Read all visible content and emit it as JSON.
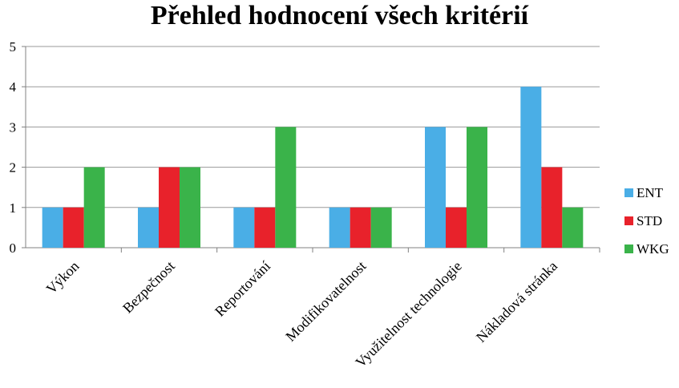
{
  "chart_data": {
    "type": "bar",
    "title": "Přehled hodnocení všech kritérií",
    "xlabel": "",
    "ylabel": "",
    "ylim": [
      0,
      5
    ],
    "yticks": [
      0,
      1,
      2,
      3,
      4,
      5
    ],
    "grid": true,
    "legend_position": "right",
    "categories": [
      "Výkon",
      "Bezpečnost",
      "Reportování",
      "Modifikovatelnost",
      "Využitelnost technologie",
      "Nákladová stránka"
    ],
    "series": [
      {
        "name": "ENT",
        "color": "#4aaee6",
        "values": [
          1,
          1,
          1,
          1,
          3,
          4
        ]
      },
      {
        "name": "STD",
        "color": "#e8222b",
        "values": [
          1,
          2,
          1,
          1,
          1,
          2
        ]
      },
      {
        "name": "WKG",
        "color": "#3ab34a",
        "values": [
          2,
          2,
          3,
          1,
          3,
          1
        ]
      }
    ]
  }
}
